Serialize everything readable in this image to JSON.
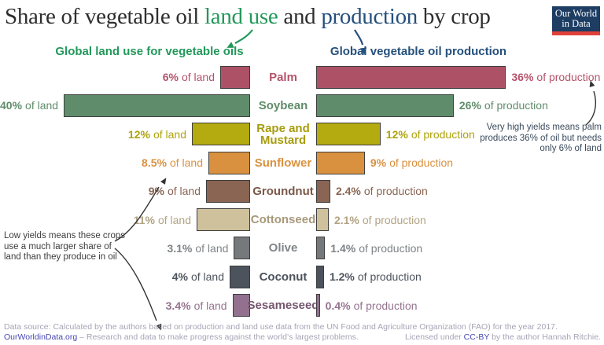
{
  "title": {
    "prefix": "Share of vegetable oil ",
    "land_use": "land use",
    "and": " and ",
    "production": "production",
    "suffix": " by crop"
  },
  "logo": {
    "line1": "Our World",
    "line2": "in Data"
  },
  "headers": {
    "left": "Global land use for vegetable oils",
    "right": "Global vegetable oil production"
  },
  "colors": {
    "land_green": "#22985a",
    "production_blue": "#25507c",
    "title_text": "#2e2e2e",
    "annotation_left": "#3d3d3d",
    "annotation_right": "#3a4a5c",
    "bar_border": "#3e3e3e",
    "footer_text": "#a6a4b6",
    "footer_link": "#4646b4",
    "logo_bg": "#1d3d63",
    "logo_red": "#e0403a",
    "arrow_dark": "#333333"
  },
  "chart_data": {
    "type": "bar",
    "orientation": "horizontal",
    "title": "Share of vegetable oil land use and production by crop",
    "categories": [
      "Palm",
      "Soybean",
      "Rape and Mustard",
      "Sunflower",
      "Groundnut",
      "Cottonseed",
      "Olive",
      "Coconut",
      "Sesameseed"
    ],
    "series": [
      {
        "name": "Global land use for vegetable oils",
        "unit": "% of land",
        "values": [
          6,
          40,
          12,
          8.5,
          9,
          11,
          3.1,
          4,
          3.4
        ]
      },
      {
        "name": "Global vegetable oil production",
        "unit": "% of production",
        "values": [
          36,
          26,
          12,
          9,
          2.4,
          2.1,
          1.4,
          1.2,
          0.4
        ]
      }
    ],
    "xlim": [
      0,
      40
    ],
    "grid": false,
    "legend_position": "column-headers"
  },
  "rows": [
    {
      "crop": "Palm",
      "land_num": "6%",
      "land_unit": "of land",
      "prod_num": "36%",
      "prod_unit": "of production",
      "fill": "#ad5266",
      "label_color": "#b5536b",
      "crop_color": "#b5536b"
    },
    {
      "crop": "Soybean",
      "land_num": "40%",
      "land_unit": "of land",
      "prod_num": "26%",
      "prod_unit": "of production",
      "fill": "#5f8c6a",
      "label_color": "#5f8c6a",
      "crop_color": "#5f8c6a"
    },
    {
      "crop": "Rape and Mustard",
      "land_num": "12%",
      "land_unit": "of land",
      "prod_num": "12%",
      "prod_unit": "of production",
      "fill": "#b3ab10",
      "label_color": "#ada30d",
      "crop_color": "#a69c0c"
    },
    {
      "crop": "Sunflower",
      "land_num": "8.5%",
      "land_unit": "of land",
      "prod_num": "9%",
      "prod_unit": "of production",
      "fill": "#d9913f",
      "label_color": "#d9913f",
      "crop_color": "#d9913f"
    },
    {
      "crop": "Groundnut",
      "land_num": "9%",
      "land_unit": "of land",
      "prod_num": "2.4%",
      "prod_unit": "of production",
      "fill": "#8a6553",
      "label_color": "#8a6553",
      "crop_color": "#7a5849"
    },
    {
      "crop": "Cottonseed",
      "land_num": "11%",
      "land_unit": "of land",
      "prod_num": "2.1%",
      "prod_unit": "of production",
      "fill": "#cfc19c",
      "label_color": "#b2a384",
      "crop_color": "#a8997b"
    },
    {
      "crop": "Olive",
      "land_num": "3.1%",
      "land_unit": "of land",
      "prod_num": "1.4%",
      "prod_unit": "of production",
      "fill": "#75797c",
      "label_color": "#7f8487",
      "crop_color": "#7f8487"
    },
    {
      "crop": "Coconut",
      "land_num": "4%",
      "land_unit": "of land",
      "prod_num": "1.2%",
      "prod_unit": "of production",
      "fill": "#4c535d",
      "label_color": "#4c535d",
      "crop_color": "#4c535d"
    },
    {
      "crop": "Sesameseed",
      "land_num": "3.4%",
      "land_unit": "of land",
      "prod_num": "0.4%",
      "prod_unit": "of production",
      "fill": "#93718e",
      "label_color": "#94738f",
      "crop_color": "#74566f"
    }
  ],
  "annotations": {
    "right": {
      "line1": "Very high yields means palm",
      "line2": "produces 36% of oil but needs",
      "line3": "only 6% of land"
    },
    "left": {
      "line1": "Low yields means these crops",
      "line2": "use a much larger share of",
      "line3": "land than they produce in oil"
    }
  },
  "footer": {
    "source": "Data source: Calculated by the authors based on production and land use data from the UN Food and Agriculture Organization (FAO) for the year 2017.",
    "site": "OurWorldinData.org",
    "tagline": " – Research and data to make progress against the world’s largest problems.",
    "license_prefix": "Licensed under ",
    "license_link": "CC-BY",
    "license_suffix": " by the author Hannah Ritchie."
  }
}
